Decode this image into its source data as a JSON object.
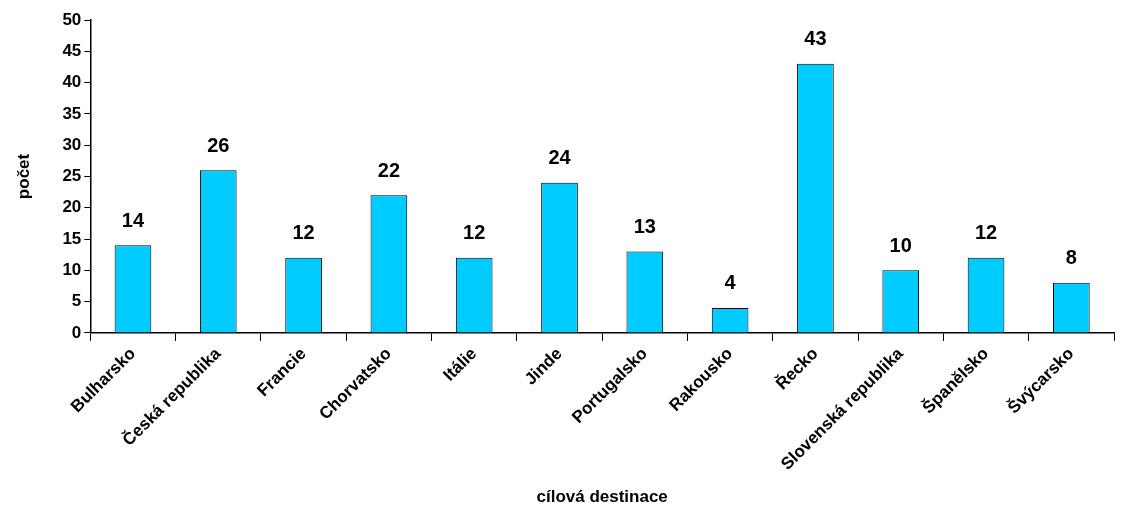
{
  "chart_data": {
    "type": "bar",
    "xlabel": "cílová destinace",
    "ylabel": "počet",
    "categories": [
      "Bulharsko",
      "Česká republika",
      "Francie",
      "Chorvatsko",
      "Itálie",
      "Jinde",
      "Portugalsko",
      "Rakousko",
      "Řecko",
      "Slovenská republika",
      "Španělsko",
      "Švýcarsko"
    ],
    "values": [
      14,
      26,
      12,
      22,
      12,
      24,
      13,
      4,
      43,
      10,
      12,
      8
    ],
    "color": "#00ccff",
    "ylim": [
      0,
      50
    ],
    "yticks": [
      0,
      5,
      10,
      15,
      20,
      25,
      30,
      35,
      40,
      45,
      50
    ],
    "grid": false,
    "legend": false,
    "data_labels": true
  }
}
